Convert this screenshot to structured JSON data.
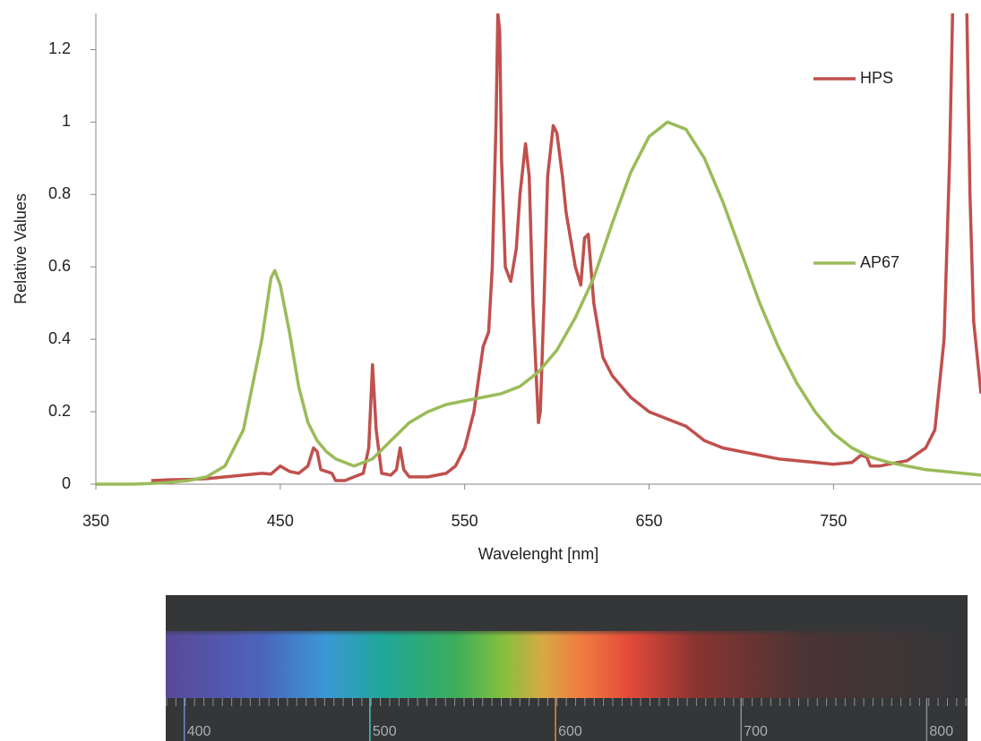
{
  "chart_data": {
    "type": "line",
    "x_label": "Wavelenght [nm]",
    "y_label": "Relative Values",
    "xlim": [
      350,
      830
    ],
    "xticks": [
      350,
      450,
      550,
      650,
      750
    ],
    "ylim": [
      0,
      1.3
    ],
    "yticks": [
      0,
      0.2,
      0.4,
      0.6,
      0.8,
      1,
      1.2
    ],
    "legend": "right",
    "series": [
      {
        "name": "HPS",
        "color": "#c0504d",
        "x": [
          380,
          390,
          400,
          410,
          420,
          430,
          440,
          445,
          450,
          455,
          460,
          465,
          468,
          470,
          472,
          475,
          478,
          480,
          485,
          490,
          495,
          498,
          500,
          502,
          505,
          510,
          513,
          515,
          517,
          520,
          530,
          540,
          545,
          550,
          555,
          560,
          563,
          565,
          567,
          568,
          569,
          570,
          572,
          575,
          578,
          580,
          583,
          585,
          587,
          590,
          591,
          593,
          595,
          598,
          600,
          603,
          605,
          610,
          613,
          615,
          617,
          620,
          625,
          630,
          640,
          650,
          660,
          670,
          680,
          690,
          700,
          710,
          720,
          730,
          740,
          750,
          760,
          765,
          768,
          770,
          775,
          780,
          790,
          800,
          805,
          810,
          813,
          815,
          818,
          820,
          822,
          824,
          826,
          830
        ],
        "values": [
          0.01,
          0.012,
          0.013,
          0.015,
          0.02,
          0.025,
          0.03,
          0.028,
          0.05,
          0.035,
          0.03,
          0.05,
          0.1,
          0.09,
          0.04,
          0.035,
          0.03,
          0.01,
          0.01,
          0.02,
          0.03,
          0.1,
          0.33,
          0.15,
          0.03,
          0.025,
          0.04,
          0.1,
          0.04,
          0.02,
          0.02,
          0.03,
          0.05,
          0.1,
          0.2,
          0.38,
          0.42,
          0.6,
          1.0,
          1.3,
          1.25,
          0.9,
          0.6,
          0.56,
          0.65,
          0.8,
          0.94,
          0.85,
          0.5,
          0.17,
          0.2,
          0.5,
          0.85,
          0.99,
          0.97,
          0.85,
          0.75,
          0.6,
          0.55,
          0.68,
          0.69,
          0.5,
          0.35,
          0.3,
          0.24,
          0.2,
          0.18,
          0.16,
          0.12,
          0.1,
          0.09,
          0.08,
          0.07,
          0.065,
          0.06,
          0.055,
          0.06,
          0.08,
          0.075,
          0.05,
          0.05,
          0.055,
          0.065,
          0.1,
          0.15,
          0.4,
          0.9,
          1.4,
          1.6,
          1.6,
          1.4,
          0.8,
          0.45,
          0.25
        ]
      },
      {
        "name": "AP67",
        "color": "#9bbb59",
        "x": [
          350,
          360,
          370,
          380,
          390,
          400,
          410,
          420,
          430,
          440,
          445,
          447,
          450,
          455,
          460,
          465,
          470,
          475,
          480,
          490,
          500,
          510,
          520,
          530,
          540,
          550,
          560,
          570,
          580,
          590,
          600,
          610,
          620,
          630,
          640,
          650,
          660,
          670,
          680,
          690,
          700,
          710,
          720,
          730,
          740,
          750,
          760,
          770,
          780,
          790,
          800,
          810,
          820,
          830
        ],
        "values": [
          0,
          0,
          0,
          0.002,
          0.005,
          0.01,
          0.02,
          0.05,
          0.15,
          0.4,
          0.57,
          0.59,
          0.55,
          0.42,
          0.27,
          0.17,
          0.12,
          0.09,
          0.07,
          0.05,
          0.07,
          0.12,
          0.17,
          0.2,
          0.22,
          0.23,
          0.24,
          0.25,
          0.27,
          0.31,
          0.37,
          0.46,
          0.57,
          0.72,
          0.86,
          0.96,
          1.0,
          0.98,
          0.9,
          0.78,
          0.64,
          0.5,
          0.38,
          0.28,
          0.2,
          0.14,
          0.1,
          0.075,
          0.06,
          0.05,
          0.04,
          0.035,
          0.03,
          0.025
        ]
      }
    ]
  },
  "spectrum": {
    "xlim": [
      390,
      822
    ],
    "ticks": [
      400,
      500,
      600,
      700,
      800
    ]
  }
}
